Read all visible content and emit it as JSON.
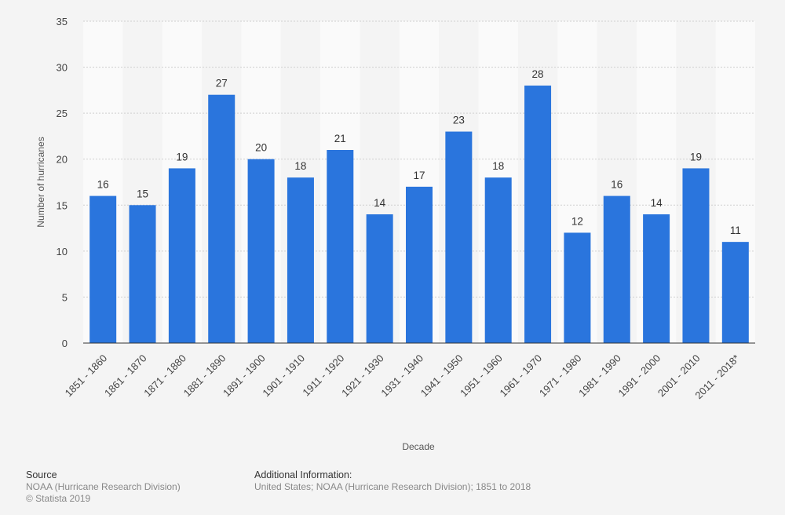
{
  "chart_data": {
    "type": "bar",
    "categories": [
      "1851 - 1860",
      "1861 - 1870",
      "1871 - 1880",
      "1881 - 1890",
      "1891 - 1900",
      "1901 - 1910",
      "1911 - 1920",
      "1921 - 1930",
      "1931 - 1940",
      "1941 - 1950",
      "1951 - 1960",
      "1961 - 1970",
      "1971 - 1980",
      "1981 - 1990",
      "1991 - 2000",
      "2001 - 2010",
      "2011 - 2018*"
    ],
    "values": [
      16,
      15,
      19,
      27,
      20,
      18,
      21,
      14,
      17,
      23,
      18,
      28,
      12,
      16,
      14,
      19,
      11
    ],
    "xlabel": "Decade",
    "ylabel": "Number of hurricanes",
    "ylim": [
      0,
      35
    ],
    "yticks": [
      0,
      5,
      10,
      15,
      20,
      25,
      30,
      35
    ],
    "grid": true,
    "bar_color": "#2a75dd",
    "data_labels": true
  },
  "footer": {
    "source_heading": "Source",
    "source_line1": "NOAA (Hurricane Research Division)",
    "source_line2": "© Statista 2019",
    "info_heading": "Additional Information:",
    "info_text": "United States; NOAA (Hurricane Research Division); 1851 to 2018"
  }
}
